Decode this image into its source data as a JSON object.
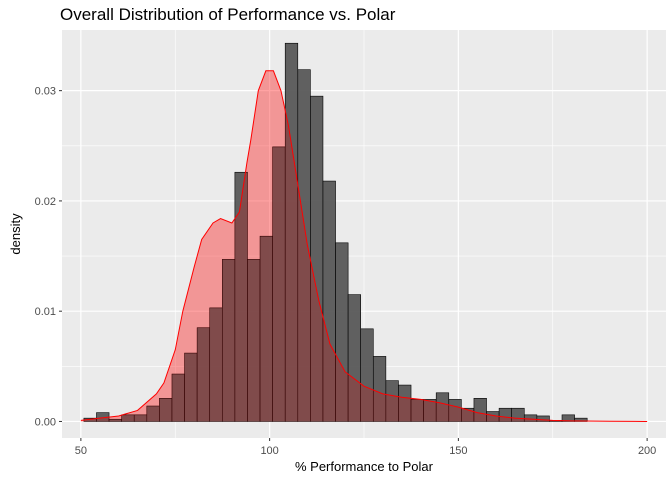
{
  "chart_data": {
    "type": "histogram",
    "title": "Overall Distribution of Performance vs. Polar",
    "xlabel": "% Performance to Polar",
    "ylabel": "density",
    "xlim": [
      45,
      205
    ],
    "ylim": [
      -0.0015,
      0.0355
    ],
    "x_ticks": [
      50,
      100,
      150,
      200
    ],
    "x_tick_labels": [
      "50",
      "100",
      "150",
      "200"
    ],
    "y_ticks": [
      0.0,
      0.01,
      0.02,
      0.03
    ],
    "y_tick_labels": [
      "0.00",
      "0.01",
      "0.02",
      "0.03"
    ],
    "grid": true,
    "panel_background": "#ebebeb",
    "grid_color": "#ffffff",
    "bar_fill": "#595959",
    "bar_stroke": "#000000",
    "density_fill": "#ff0000",
    "density_fill_opacity": 0.2,
    "density_line": "#ff0000",
    "bin_width": 3.333,
    "bin_start": 50.8,
    "bin_values": [
      0.0003,
      0.0008,
      0.0002,
      0.0006,
      0.0006,
      0.0014,
      0.0021,
      0.0043,
      0.0062,
      0.0085,
      0.0103,
      0.0147,
      0.0226,
      0.0147,
      0.0168,
      0.0249,
      0.0343,
      0.0319,
      0.0295,
      0.0218,
      0.0162,
      0.0115,
      0.0084,
      0.0059,
      0.0037,
      0.0033,
      0.002,
      0.002,
      0.0026,
      0.002,
      0.0012,
      0.0021,
      0.0009,
      0.0012,
      0.0012,
      0.0006,
      0.0005,
      0.0001,
      0.0006,
      0.0003,
      0,
      0,
      0,
      0,
      0,
      0,
      0,
      0,
      0.0003
    ],
    "density_curve": {
      "x": [
        50,
        55,
        60,
        65,
        70,
        72,
        75,
        77,
        80,
        82,
        85,
        87,
        90,
        92,
        94,
        95,
        97,
        99,
        101,
        103,
        105,
        107,
        110,
        113,
        116,
        120,
        125,
        130,
        135,
        140,
        145,
        150,
        155,
        160,
        165,
        170,
        175,
        180,
        190,
        200
      ],
      "y": [
        0.0001,
        0.0003,
        0.0005,
        0.001,
        0.0025,
        0.0035,
        0.0065,
        0.01,
        0.014,
        0.0165,
        0.018,
        0.0184,
        0.018,
        0.019,
        0.0235,
        0.0255,
        0.03,
        0.0318,
        0.0318,
        0.03,
        0.0268,
        0.0225,
        0.016,
        0.011,
        0.007,
        0.0045,
        0.0032,
        0.0025,
        0.0022,
        0.002,
        0.0017,
        0.0013,
        0.0008,
        0.0005,
        0.0003,
        0.0002,
        0.0001,
        5e-05,
        2e-05,
        0.0
      ]
    }
  }
}
